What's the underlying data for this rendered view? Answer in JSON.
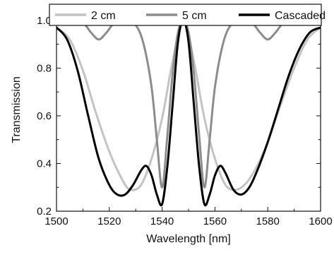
{
  "chart_data": {
    "type": "line",
    "title": "",
    "xlabel": "Wavelength [nm]",
    "ylabel": "Transmission",
    "xlim": [
      1500,
      1600
    ],
    "ylim": [
      0.2,
      1.05
    ],
    "x_ticks": [
      1500,
      1520,
      1540,
      1560,
      1580,
      1600
    ],
    "x_tick_labels": [
      "1500",
      "1520",
      "1540",
      "1560",
      "1580",
      "1600"
    ],
    "y_ticks": [
      0.2,
      0.4,
      0.6,
      0.8,
      1.0
    ],
    "y_tick_labels": [
      "0.2",
      "0.4",
      "0.6",
      "0.8",
      "1.0"
    ],
    "grid": false,
    "legend_position": "top",
    "legend": [
      "2 cm",
      "5 cm",
      "Cascaded"
    ],
    "series": [
      {
        "name": "2 cm",
        "color": "#c3c3c3",
        "x": [
          1500,
          1505,
          1510,
          1515,
          1520,
          1525,
          1528,
          1532,
          1536,
          1540,
          1544,
          1548,
          1552,
          1556,
          1560,
          1564,
          1568,
          1572,
          1576,
          1580,
          1585,
          1590,
          1595,
          1600
        ],
        "values": [
          0.97,
          0.92,
          0.79,
          0.61,
          0.45,
          0.33,
          0.29,
          0.31,
          0.42,
          0.59,
          0.83,
          1.0,
          0.83,
          0.59,
          0.42,
          0.31,
          0.29,
          0.32,
          0.39,
          0.49,
          0.65,
          0.8,
          0.92,
          0.97
        ]
      },
      {
        "name": "5 cm",
        "color": "#8c8c8c",
        "x": [
          1500,
          1505,
          1510,
          1513,
          1516,
          1519,
          1522,
          1526,
          1530,
          1533,
          1536,
          1538,
          1540,
          1542,
          1544,
          1546,
          1548,
          1550,
          1552,
          1554,
          1556,
          1558,
          1560,
          1563,
          1566,
          1570,
          1574,
          1577,
          1580,
          1583,
          1586,
          1590,
          1595,
          1600
        ],
        "values": [
          1.0,
          1.0,
          0.99,
          0.95,
          0.92,
          0.95,
          0.99,
          1.0,
          0.98,
          0.9,
          0.72,
          0.5,
          0.3,
          0.52,
          0.78,
          0.95,
          1.0,
          0.95,
          0.78,
          0.52,
          0.3,
          0.5,
          0.72,
          0.9,
          0.98,
          1.0,
          0.99,
          0.95,
          0.92,
          0.95,
          0.99,
          1.0,
          1.0,
          0.99
        ]
      },
      {
        "name": "Cascaded",
        "color": "#000000",
        "x": [
          1500,
          1504,
          1508,
          1512,
          1516,
          1520,
          1523,
          1526,
          1529,
          1532,
          1534,
          1536,
          1538,
          1540,
          1542,
          1544,
          1546,
          1548,
          1550,
          1552,
          1554,
          1556,
          1558,
          1560,
          1562,
          1564,
          1567,
          1570,
          1573,
          1576,
          1580,
          1584,
          1588,
          1592,
          1596,
          1600
        ],
        "values": [
          0.97,
          0.92,
          0.79,
          0.6,
          0.42,
          0.31,
          0.27,
          0.27,
          0.31,
          0.37,
          0.39,
          0.35,
          0.27,
          0.23,
          0.39,
          0.65,
          0.91,
          1.0,
          0.91,
          0.65,
          0.39,
          0.23,
          0.27,
          0.35,
          0.39,
          0.36,
          0.29,
          0.27,
          0.3,
          0.37,
          0.49,
          0.63,
          0.77,
          0.88,
          0.95,
          0.97
        ]
      }
    ]
  }
}
